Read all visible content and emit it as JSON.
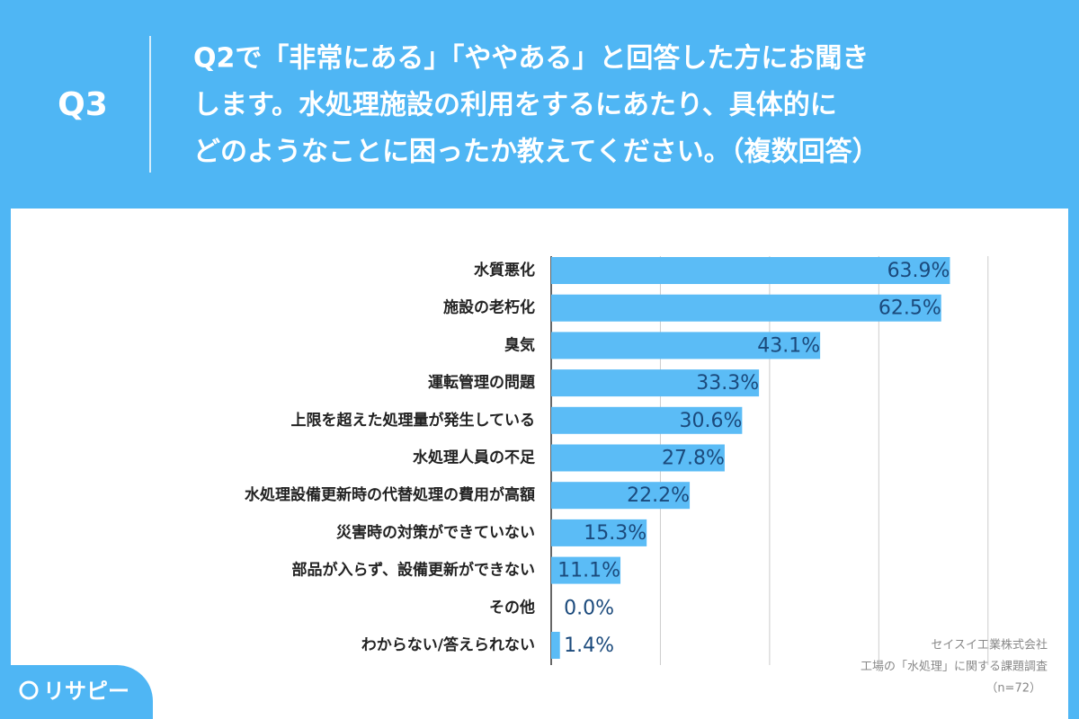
{
  "header": {
    "label": "Q3",
    "question": [
      "Q2で「非常にある」「ややある」と回答した方にお聞き",
      "します。水処理施設の利用をするにあたり、具体的に",
      "どのようなことに困ったか教えてください。（複数回答）"
    ]
  },
  "chart_data": {
    "type": "bar",
    "orientation": "horizontal",
    "categories": [
      "水質悪化",
      "施設の老朽化",
      "臭気",
      "運転管理の問題",
      "上限を超えた処理量が発生している",
      "水処理人員の不足",
      "水処理設備更新時の代替処理の費用が高額",
      "災害時の対策ができていない",
      "部品が入らず、設備更新ができない",
      "その他",
      "わからない/答えられない"
    ],
    "values": [
      63.9,
      62.5,
      43.1,
      33.3,
      30.6,
      27.8,
      22.2,
      15.3,
      11.1,
      0.0,
      1.4
    ],
    "value_labels": [
      "63.9%",
      "62.5%",
      "43.1%",
      "33.3%",
      "30.6%",
      "27.8%",
      "22.2%",
      "15.3%",
      "11.1%",
      "0.0%",
      "1.4%"
    ],
    "color": "#5bbcf6",
    "xlim": [
      0,
      70
    ],
    "xticks": [
      0,
      17.5,
      35,
      52.5,
      70
    ],
    "grid": true
  },
  "footer": {
    "source": [
      "セイスイ工業株式会社",
      "工場の「水処理」に関する課題調査",
      "（n=72）"
    ],
    "logo": "リサピー"
  }
}
